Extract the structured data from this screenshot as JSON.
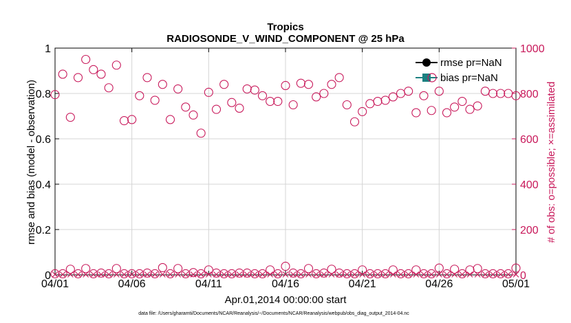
{
  "chart_data": {
    "type": "scatter",
    "title": "Tropics",
    "subtitle": "RADIOSONDE_V_WIND_COMPONENT @ 25 hPa",
    "xlabel": "Apr.01,2014 00:00:00 start",
    "ylabel_left": "rmse and bias (model - observation)",
    "ylabel_right": "# of obs: o=possible; ×=assimilated",
    "xlim": [
      0,
      30
    ],
    "ylim_left": [
      0,
      1
    ],
    "ylim_right": [
      0,
      1000
    ],
    "grid": true,
    "x_tick_values": [
      0,
      5,
      10,
      15,
      20,
      25,
      30
    ],
    "x_tick_labels": [
      "04/01",
      "04/06",
      "04/11",
      "04/16",
      "04/21",
      "04/26",
      "05/01"
    ],
    "y_left_ticks": [
      "0",
      "0.2",
      "0.4",
      "0.6",
      "0.8",
      "1"
    ],
    "y_right_ticks": [
      "0",
      "200",
      "400",
      "600",
      "800",
      "1000"
    ],
    "legend": {
      "position": "top-right",
      "entries": [
        {
          "label": "rmse pr=NaN",
          "color": "#000000"
        },
        {
          "label": "bias pr=NaN",
          "color": "#1a8080"
        }
      ]
    },
    "series": [
      {
        "name": "possible (upper obs count)",
        "marker": "circle",
        "axis": "right",
        "color": "#c8185a",
        "x": [
          0,
          0.5,
          1,
          1.5,
          2,
          2.5,
          3,
          3.5,
          4,
          4.5,
          5,
          5.5,
          6,
          6.5,
          7,
          7.5,
          8,
          8.5,
          9,
          9.5,
          10,
          10.5,
          11,
          11.5,
          12,
          12.5,
          13,
          13.5,
          14,
          14.5,
          15,
          15.5,
          16,
          16.5,
          17,
          17.5,
          18,
          18.5,
          19,
          19.5,
          20,
          20.5,
          21,
          21.5,
          22,
          22.5,
          23,
          23.5,
          24,
          24.5,
          25,
          25.5,
          26,
          26.5,
          27,
          27.5,
          28,
          28.5,
          29,
          29.5,
          30
        ],
        "values": [
          795,
          885,
          695,
          870,
          950,
          905,
          885,
          825,
          925,
          680,
          685,
          790,
          870,
          770,
          840,
          685,
          820,
          740,
          705,
          625,
          805,
          730,
          840,
          760,
          735,
          820,
          815,
          790,
          765,
          765,
          835,
          750,
          845,
          840,
          785,
          800,
          840,
          870,
          750,
          675,
          720,
          755,
          765,
          770,
          785,
          800,
          810,
          715,
          790,
          725,
          810,
          715,
          740,
          765,
          730,
          745,
          810,
          800,
          800,
          800,
          790
        ]
      },
      {
        "name": "possible (lower obs count)",
        "marker": "circle",
        "axis": "right",
        "color": "#c8185a",
        "x": [
          0,
          0.5,
          1,
          1.5,
          2,
          2.5,
          3,
          3.5,
          4,
          4.5,
          5,
          5.5,
          6,
          6.5,
          7,
          7.5,
          8,
          8.5,
          9,
          9.5,
          10,
          10.5,
          11,
          11.5,
          12,
          12.5,
          13,
          13.5,
          14,
          14.5,
          15,
          15.5,
          16,
          16.5,
          17,
          17.5,
          18,
          18.5,
          19,
          19.5,
          20,
          20.5,
          21,
          21.5,
          22,
          22.5,
          23,
          23.5,
          24,
          24.5,
          25,
          25.5,
          26,
          26.5,
          27,
          27.5,
          28,
          28.5,
          29,
          29.5,
          30
        ],
        "values": [
          5,
          5,
          25,
          5,
          28,
          5,
          8,
          5,
          28,
          5,
          5,
          5,
          8,
          5,
          32,
          5,
          28,
          5,
          10,
          5,
          22,
          8,
          5,
          5,
          8,
          8,
          5,
          5,
          22,
          5,
          38,
          8,
          5,
          28,
          5,
          8,
          25,
          8,
          5,
          5,
          22,
          5,
          5,
          5,
          22,
          5,
          5,
          22,
          5,
          5,
          30,
          5,
          25,
          5,
          22,
          28,
          5,
          5,
          5,
          5,
          30
        ]
      },
      {
        "name": "assimilated",
        "marker": "x",
        "axis": "right",
        "color": "#c8185a",
        "x": [
          0,
          0.5,
          1,
          1.5,
          2,
          2.5,
          3,
          3.5,
          4,
          4.5,
          5,
          5.5,
          6,
          6.5,
          7,
          7.5,
          8,
          8.5,
          9,
          9.5,
          10,
          10.5,
          11,
          11.5,
          12,
          12.5,
          13,
          13.5,
          14,
          14.5,
          15,
          15.5,
          16,
          16.5,
          17,
          17.5,
          18,
          18.5,
          19,
          19.5,
          20,
          20.5,
          21,
          21.5,
          22,
          22.5,
          23,
          23.5,
          24,
          24.5,
          25,
          25.5,
          26,
          26.5,
          27,
          27.5,
          28,
          28.5,
          29,
          29.5,
          30
        ],
        "values": [
          2,
          2,
          2,
          2,
          2,
          2,
          2,
          2,
          2,
          2,
          2,
          2,
          2,
          2,
          2,
          2,
          2,
          2,
          2,
          2,
          2,
          2,
          2,
          2,
          2,
          2,
          2,
          2,
          2,
          2,
          2,
          2,
          2,
          2,
          2,
          2,
          2,
          2,
          2,
          2,
          2,
          2,
          2,
          2,
          2,
          2,
          2,
          2,
          2,
          2,
          2,
          2,
          2,
          2,
          2,
          2,
          2,
          2,
          2,
          2,
          2
        ]
      }
    ]
  },
  "footer": "data file: /Users/gharamti/Documents/NCAR/Reanalysis/~/Documents/NCAR/Reanalysis/webpub/obs_diag_output_2014-04.nc"
}
